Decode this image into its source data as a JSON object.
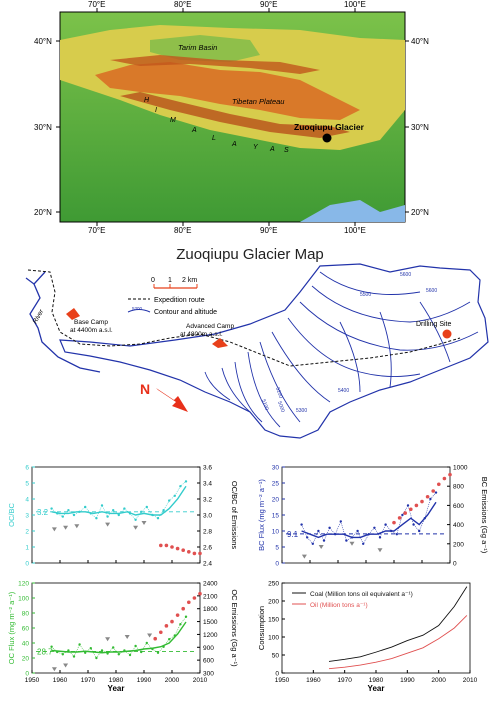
{
  "top_map": {
    "lon_labels": [
      "70°E",
      "80°E",
      "90°E",
      "100°E"
    ],
    "lat_labels": [
      "40°N",
      "30°N",
      "20°N"
    ],
    "region_labels": {
      "tarim": "Tarim Basin",
      "plateau": "Tibetan Plateau",
      "himalayas": [
        "H",
        "I",
        "M",
        "A",
        "L",
        "A",
        "Y",
        "A",
        "S"
      ]
    },
    "site_label": "Zuoqiupu Glacier",
    "colors": {
      "lowland": "#5aa83a",
      "highland": "#d4c84a",
      "peaks": "#c85a1e",
      "site": "#000000"
    }
  },
  "glacier_map": {
    "title": "Zuoqiupu Glacier Map",
    "scale_labels": [
      "0",
      "1",
      "2 km"
    ],
    "legend": {
      "route": "Expedition route",
      "contour": "Contour and altitude",
      "contour_value": "5300"
    },
    "river_label": "River",
    "base_camp": [
      "Base Camp",
      "at 4400m a.s.l."
    ],
    "advanced_camp": [
      "Advanced Camp",
      "at 4800m a.s.l."
    ],
    "drilling_site": "Drilling Site",
    "contour_values": [
      "5600",
      "5500",
      "5400",
      "5300",
      "5200",
      "5100",
      "5000"
    ],
    "north_label": "N",
    "colors": {
      "contour": "#2233aa",
      "camp": "#e8401a",
      "arrow": "#e8301a"
    }
  },
  "chart_data": [
    {
      "id": "ocbc",
      "type": "line",
      "ylabel": "OC/BC",
      "y2label": "OC/BC of Emissions",
      "ylim": [
        0,
        6
      ],
      "y2lim": [
        2.4,
        3.6
      ],
      "yticks": [
        "0",
        "1",
        "2",
        "3",
        "4",
        "5",
        "6"
      ],
      "y2ticks": [
        "2.4",
        "2.6",
        "2.8",
        "3.0",
        "3.2",
        "3.4",
        "3.6"
      ],
      "mean_label": "3.2",
      "mean": 3.2,
      "color": "#33cccc",
      "series": [
        {
          "x": [
            1957,
            1959,
            1961,
            1963,
            1965,
            1967,
            1969,
            1971,
            1973,
            1975,
            1977,
            1979,
            1981,
            1983,
            1985,
            1987,
            1989,
            1991,
            1993,
            1995,
            1997,
            1999,
            2001,
            2003,
            2005
          ],
          "y": [
            3.4,
            3.1,
            2.9,
            3.3,
            3.0,
            3.2,
            3.5,
            3.1,
            2.8,
            3.6,
            2.9,
            3.3,
            3.0,
            3.4,
            3.1,
            2.7,
            3.2,
            3.5,
            3.0,
            2.8,
            3.3,
            3.9,
            4.2,
            4.8,
            5.1
          ]
        },
        {
          "x": [
            1957,
            1960,
            1963,
            1966,
            1969,
            1972,
            1975,
            1978,
            1981,
            1984,
            1987,
            1990,
            1993,
            1996,
            1999,
            2002,
            2005
          ],
          "y": [
            3.2,
            3.1,
            3.1,
            3.2,
            3.2,
            3.1,
            3.2,
            3.1,
            3.1,
            3.2,
            3.0,
            3.1,
            3.0,
            3.0,
            3.4,
            4.0,
            4.8
          ]
        }
      ],
      "gray_markers": {
        "x": [
          1958,
          1962,
          1966,
          1977,
          1987,
          1990
        ],
        "y": [
          2.1,
          2.2,
          2.3,
          2.4,
          2.2,
          2.5
        ]
      },
      "emission_points": {
        "x": [
          1996,
          1998,
          2000,
          2002,
          2004,
          2006,
          2008,
          2010
        ],
        "y": [
          2.62,
          2.62,
          2.6,
          2.58,
          2.56,
          2.54,
          2.52,
          2.52
        ]
      }
    },
    {
      "id": "bc",
      "type": "line",
      "ylabel": "BC Flux (mg m⁻² a⁻¹)",
      "y2label": "BC Emissions (Gg a⁻¹)",
      "ylim": [
        0,
        30
      ],
      "y2lim": [
        0,
        1000
      ],
      "yticks": [
        "0",
        "5",
        "10",
        "15",
        "20",
        "25",
        "30"
      ],
      "y2ticks": [
        "0",
        "200",
        "400",
        "600",
        "800",
        "1000"
      ],
      "mean_label": "9.1",
      "mean": 9.1,
      "color": "#2233aa",
      "series": [
        {
          "x": [
            1957,
            1959,
            1961,
            1963,
            1965,
            1967,
            1969,
            1971,
            1973,
            1975,
            1977,
            1979,
            1981,
            1983,
            1985,
            1987,
            1989,
            1991,
            1993,
            1995,
            1997,
            1999,
            2001,
            2003,
            2005
          ],
          "y": [
            12,
            8,
            6,
            10,
            7,
            11,
            9,
            13,
            7,
            8,
            10,
            6,
            9,
            11,
            8,
            12,
            10,
            9,
            15,
            18,
            12,
            10,
            14,
            20,
            22
          ]
        },
        {
          "x": [
            1957,
            1960,
            1963,
            1966,
            1969,
            1972,
            1975,
            1978,
            1981,
            1984,
            1987,
            1990,
            1993,
            1996,
            1999,
            2002,
            2005
          ],
          "y": [
            10,
            9,
            8,
            9,
            9,
            9,
            8,
            8,
            9,
            9,
            10,
            10,
            12,
            14,
            12,
            15,
            19
          ]
        }
      ],
      "gray_markers": {
        "x": [
          1958,
          1964,
          1975,
          1985
        ],
        "y": [
          2,
          5,
          6,
          4
        ]
      },
      "emission_points": {
        "x": [
          1990,
          1992,
          1994,
          1996,
          1998,
          2000,
          2002,
          2004,
          2006,
          2008,
          2010
        ],
        "y": [
          420,
          470,
          520,
          560,
          600,
          640,
          690,
          750,
          820,
          880,
          920
        ]
      }
    },
    {
      "id": "oc",
      "type": "line",
      "ylabel": "OC Flux (mg m⁻² a⁻¹)",
      "y2label": "OC Emissions (Gg a⁻¹)",
      "ylim": [
        0,
        120
      ],
      "y2lim": [
        300,
        2400
      ],
      "yticks": [
        "0",
        "20",
        "40",
        "60",
        "80",
        "100",
        "120"
      ],
      "y2ticks": [
        "300",
        "600",
        "900",
        "1200",
        "1500",
        "1800",
        "2100",
        "2400"
      ],
      "mean_label": "28.7",
      "mean": 28.7,
      "color": "#33bb33",
      "xlabel": "Year",
      "xticks": [
        "1950",
        "1960",
        "1970",
        "1980",
        "1990",
        "2000",
        "2010"
      ],
      "series": [
        {
          "x": [
            1957,
            1959,
            1961,
            1963,
            1965,
            1967,
            1969,
            1971,
            1973,
            1975,
            1977,
            1979,
            1981,
            1983,
            1985,
            1987,
            1989,
            1991,
            1993,
            1995,
            1997,
            1999,
            2001,
            2003,
            2005
          ],
          "y": [
            35,
            28,
            25,
            30,
            22,
            38,
            27,
            33,
            20,
            30,
            26,
            34,
            25,
            30,
            24,
            36,
            28,
            40,
            32,
            27,
            35,
            45,
            50,
            65,
            75
          ]
        },
        {
          "x": [
            1957,
            1960,
            1963,
            1966,
            1969,
            1972,
            1975,
            1978,
            1981,
            1984,
            1987,
            1990,
            1993,
            1996,
            1999,
            2002,
            2005
          ],
          "y": [
            30,
            29,
            28,
            28,
            29,
            28,
            27,
            28,
            28,
            29,
            30,
            32,
            33,
            35,
            40,
            52,
            68
          ]
        }
      ],
      "gray_markers": {
        "x": [
          1958,
          1962,
          1977,
          1984,
          1992
        ],
        "y": [
          5,
          10,
          45,
          48,
          50
        ]
      },
      "emission_points": {
        "x": [
          1994,
          1996,
          1998,
          2000,
          2002,
          2004,
          2006,
          2008,
          2010
        ],
        "y": [
          1100,
          1250,
          1400,
          1500,
          1650,
          1800,
          1950,
          2050,
          2150
        ]
      }
    },
    {
      "id": "consumption",
      "type": "line",
      "ylabel": "Consumption",
      "xlabel": "Year",
      "xlim": [
        1950,
        2010
      ],
      "ylim": [
        0,
        250
      ],
      "yticks": [
        "0",
        "50",
        "100",
        "150",
        "200",
        "250"
      ],
      "xticks": [
        "1950",
        "1960",
        "1970",
        "1980",
        "1990",
        "2000",
        "2010"
      ],
      "series": [
        {
          "name": "Coal (Million tons oil equivalent a⁻¹)",
          "color": "#111111",
          "x": [
            1965,
            1970,
            1975,
            1980,
            1985,
            1990,
            1995,
            2000,
            2005,
            2009
          ],
          "y": [
            32,
            38,
            45,
            58,
            72,
            90,
            105,
            132,
            185,
            240
          ]
        },
        {
          "name": "Oil (Million tons a⁻¹)",
          "color": "#e05050",
          "x": [
            1965,
            1970,
            1975,
            1980,
            1985,
            1990,
            1995,
            2000,
            2005,
            2009
          ],
          "y": [
            12,
            16,
            22,
            30,
            40,
            55,
            70,
            95,
            125,
            160
          ]
        }
      ]
    }
  ]
}
